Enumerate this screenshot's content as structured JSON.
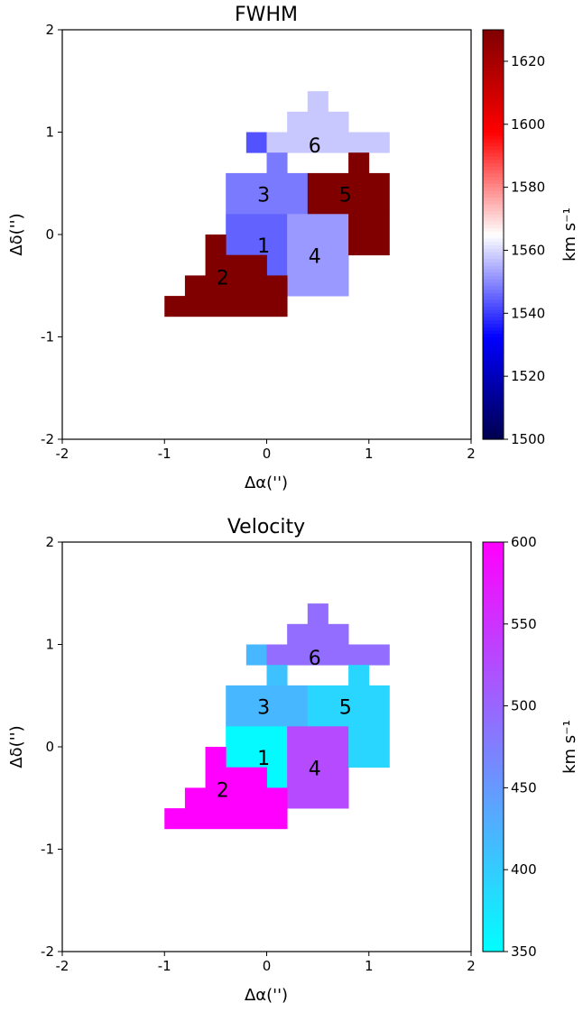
{
  "chart_data": [
    {
      "type": "heatmap",
      "title": "FWHM",
      "xlabel": "Δα('')",
      "ylabel": "Δδ('')",
      "xlim": [
        -2,
        2
      ],
      "ylim": [
        -2,
        2
      ],
      "xticks": [
        "-2",
        "-1",
        "0",
        "1",
        "2"
      ],
      "yticks": [
        "-2",
        "-1",
        "0",
        "1",
        "2"
      ],
      "colorbar": {
        "label": "km s⁻¹",
        "range": [
          1500,
          1630
        ],
        "ticks": [
          "1500",
          "1520",
          "1540",
          "1560",
          "1580",
          "1600",
          "1620"
        ],
        "colormap": "seismic (blue-white-red)"
      },
      "cells": [
        {
          "x0": 0.4,
          "x1": 0.6,
          "y0": 1.2,
          "y1": 1.4,
          "value": 1558
        },
        {
          "x0": 0.2,
          "x1": 0.8,
          "y0": 1.0,
          "y1": 1.2,
          "value": 1558
        },
        {
          "x0": -0.2,
          "x1": 0.0,
          "y0": 0.8,
          "y1": 1.0,
          "value": 1543
        },
        {
          "x0": 0.0,
          "x1": 1.2,
          "y0": 0.8,
          "y1": 1.0,
          "value": 1558
        },
        {
          "x0": 0.0,
          "x1": 0.2,
          "y0": 0.6,
          "y1": 0.8,
          "value": 1548
        },
        {
          "x0": -0.4,
          "x1": 0.4,
          "y0": 0.2,
          "y1": 0.6,
          "value": 1548
        },
        {
          "x0": 0.8,
          "x1": 1.0,
          "y0": 0.6,
          "y1": 0.8,
          "value": 1630
        },
        {
          "x0": 0.4,
          "x1": 1.2,
          "y0": 0.2,
          "y1": 0.6,
          "value": 1630
        },
        {
          "x0": -0.4,
          "x1": 0.2,
          "y0": -0.2,
          "y1": 0.2,
          "value": 1545
        },
        {
          "x0": 0.0,
          "x1": 0.2,
          "y0": -0.4,
          "y1": -0.2,
          "value": 1545
        },
        {
          "x0": 0.2,
          "x1": 0.8,
          "y0": -0.6,
          "y1": 0.2,
          "value": 1552
        },
        {
          "x0": 0.8,
          "x1": 1.2,
          "y0": -0.2,
          "y1": 0.2,
          "value": 1630
        },
        {
          "x0": -0.6,
          "x1": -0.4,
          "y0": -0.2,
          "y1": 0.0,
          "value": 1630
        },
        {
          "x0": -0.6,
          "x1": 0.0,
          "y0": -0.4,
          "y1": -0.2,
          "value": 1630
        },
        {
          "x0": -0.8,
          "x1": 0.2,
          "y0": -0.6,
          "y1": -0.4,
          "value": 1630
        },
        {
          "x0": -1.0,
          "x1": 0.2,
          "y0": -0.8,
          "y1": -0.6,
          "value": 1630
        }
      ],
      "annotations": [
        {
          "text": "6",
          "x": 0.47,
          "y": 0.86
        },
        {
          "text": "3",
          "x": -0.03,
          "y": 0.38
        },
        {
          "text": "5",
          "x": 0.77,
          "y": 0.38
        },
        {
          "text": "1",
          "x": -0.03,
          "y": -0.12
        },
        {
          "text": "4",
          "x": 0.47,
          "y": -0.22
        },
        {
          "text": "2",
          "x": -0.43,
          "y": -0.43
        }
      ]
    },
    {
      "type": "heatmap",
      "title": "Velocity",
      "xlabel": "Δα('')",
      "ylabel": "Δδ('')",
      "xlim": [
        -2,
        2
      ],
      "ylim": [
        -2,
        2
      ],
      "xticks": [
        "-2",
        "-1",
        "0",
        "1",
        "2"
      ],
      "yticks": [
        "-2",
        "-1",
        "0",
        "1",
        "2"
      ],
      "colorbar": {
        "label": "km s⁻¹",
        "range": [
          350,
          600
        ],
        "ticks": [
          "350",
          "400",
          "450",
          "500",
          "550",
          "600"
        ],
        "colormap": "cool (cyan-magenta)"
      },
      "cells": [
        {
          "x0": 0.4,
          "x1": 0.6,
          "y0": 1.2,
          "y1": 1.4,
          "value": 493
        },
        {
          "x0": 0.2,
          "x1": 0.8,
          "y0": 1.0,
          "y1": 1.2,
          "value": 493
        },
        {
          "x0": -0.2,
          "x1": 0.0,
          "y0": 0.8,
          "y1": 1.0,
          "value": 420
        },
        {
          "x0": 0.0,
          "x1": 1.2,
          "y0": 0.8,
          "y1": 1.0,
          "value": 493
        },
        {
          "x0": 0.0,
          "x1": 0.2,
          "y0": 0.6,
          "y1": 0.8,
          "value": 410
        },
        {
          "x0": 0.8,
          "x1": 1.0,
          "y0": 0.6,
          "y1": 0.8,
          "value": 390
        },
        {
          "x0": -0.4,
          "x1": 0.4,
          "y0": 0.2,
          "y1": 0.6,
          "value": 420
        },
        {
          "x0": 0.4,
          "x1": 1.2,
          "y0": 0.2,
          "y1": 0.6,
          "value": 390
        },
        {
          "x0": -0.4,
          "x1": 0.2,
          "y0": -0.2,
          "y1": 0.2,
          "value": 355
        },
        {
          "x0": 0.0,
          "x1": 0.2,
          "y0": -0.4,
          "y1": -0.2,
          "value": 355
        },
        {
          "x0": 0.2,
          "x1": 0.8,
          "y0": -0.6,
          "y1": 0.2,
          "value": 527
        },
        {
          "x0": 0.8,
          "x1": 1.2,
          "y0": -0.2,
          "y1": 0.2,
          "value": 390
        },
        {
          "x0": -0.6,
          "x1": -0.4,
          "y0": -0.2,
          "y1": 0.0,
          "value": 600
        },
        {
          "x0": -0.6,
          "x1": 0.0,
          "y0": -0.4,
          "y1": -0.2,
          "value": 600
        },
        {
          "x0": -0.8,
          "x1": 0.2,
          "y0": -0.6,
          "y1": -0.4,
          "value": 600
        },
        {
          "x0": -1.0,
          "x1": 0.2,
          "y0": -0.8,
          "y1": -0.6,
          "value": 600
        }
      ],
      "annotations": [
        {
          "text": "6",
          "x": 0.47,
          "y": 0.86
        },
        {
          "text": "3",
          "x": -0.03,
          "y": 0.38
        },
        {
          "text": "5",
          "x": 0.77,
          "y": 0.38
        },
        {
          "text": "1",
          "x": -0.03,
          "y": -0.12
        },
        {
          "text": "4",
          "x": 0.47,
          "y": -0.22
        },
        {
          "text": "2",
          "x": -0.43,
          "y": -0.43
        }
      ]
    }
  ]
}
